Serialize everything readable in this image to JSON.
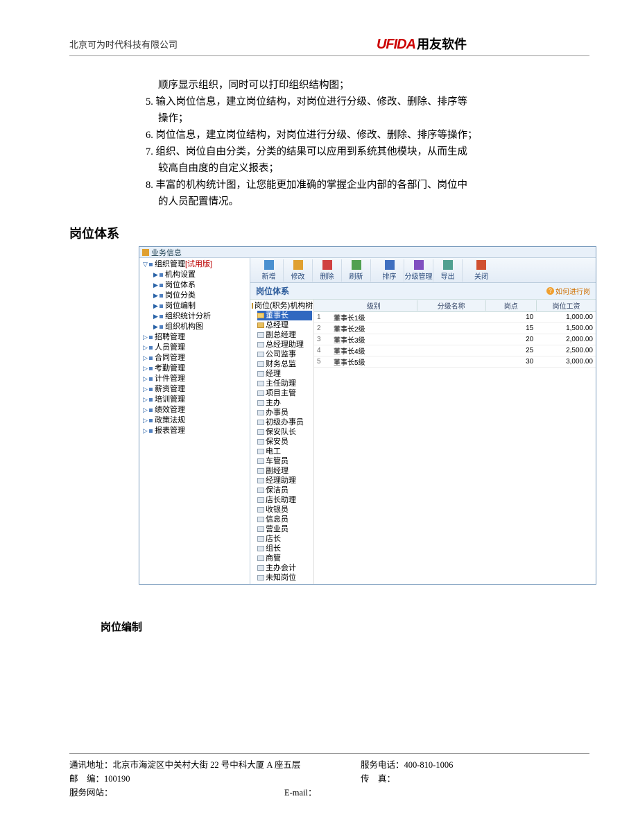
{
  "header": {
    "company": "北京可为时代科技有限公司",
    "logo_en": "UFIDA",
    "logo_cn": "用友软件"
  },
  "doc": {
    "pre_line": "顺序显示组织，同时可以打印组织结构图；",
    "items": [
      {
        "num": "5.",
        "text": "输入岗位信息，建立岗位结构，对岗位进行分级、修改、删除、排序等",
        "cont": "操作；"
      },
      {
        "num": "6.",
        "text": "岗位信息，建立岗位结构，对岗位进行分级、修改、删除、排序等操作；",
        "cont": ""
      },
      {
        "num": "7.",
        "text": "组织、岗位自由分类，分类的结果可以应用到系统其他模块，从而生成",
        "cont": "较高自由度的自定义报表；"
      },
      {
        "num": "8.",
        "text": "丰富的机构统计图，让您能更加准确的掌握企业内部的各部门、岗位中",
        "cont": "的人员配置情况。"
      }
    ],
    "section_title": "岗位体系",
    "sub_title": "岗位编制"
  },
  "ui": {
    "top_label": "业务信息",
    "nav": {
      "root": "组织管理",
      "trial": "[试用版]",
      "org_children": [
        "机构设置",
        "岗位体系",
        "岗位分类",
        "岗位编制",
        "组织统计分析",
        "组织机构图"
      ],
      "others": [
        "招聘管理",
        "人员管理",
        "合同管理",
        "考勤管理",
        "计件管理",
        "薪资管理",
        "培训管理",
        "绩效管理",
        "政策法规",
        "报表管理"
      ]
    },
    "toolbar": [
      "新增",
      "修改",
      "删除",
      "刷新",
      "排序",
      "分级管理",
      "导出",
      "关闭"
    ],
    "content_title": "岗位体系",
    "help": "如何进行岗",
    "tree": {
      "root": "岗位(职务)机构树",
      "selected": "董事长",
      "items": [
        "总经理",
        "副总经理",
        "总经理助理",
        "公司监事",
        "财务总监",
        "经理",
        "主任助理",
        "项目主管",
        "主办",
        "办事员",
        "初级办事员",
        "保安队长",
        "保安员",
        "电工",
        "车管员",
        "副经理",
        "经理助理",
        "保洁员",
        "店长助理",
        "收银员",
        "信息员",
        "营业员",
        "店长",
        "组长",
        "商管",
        "主办会计",
        "未知岗位"
      ]
    },
    "grid": {
      "cols": [
        "级别",
        "分级名称",
        "岗点",
        "岗位工资"
      ],
      "rows": [
        {
          "idx": "1",
          "name": "董事长1级",
          "pts": "10",
          "wage": "1,000.00"
        },
        {
          "idx": "2",
          "name": "董事长2级",
          "pts": "15",
          "wage": "1,500.00"
        },
        {
          "idx": "3",
          "name": "董事长3级",
          "pts": "20",
          "wage": "2,000.00"
        },
        {
          "idx": "4",
          "name": "董事长4级",
          "pts": "25",
          "wage": "2,500.00"
        },
        {
          "idx": "5",
          "name": "董事长5级",
          "pts": "30",
          "wage": "3,000.00"
        }
      ]
    }
  },
  "footer": {
    "addr_label": "通讯地址：",
    "addr": "北京市海淀区中关村大街 22 号中科大厦 A 座五层",
    "zip_label": "邮　编：",
    "zip": "100190",
    "site_label": "服务网站：",
    "phone_label": "服务电话：",
    "phone": "400-810-1006",
    "fax_label": "传　真：",
    "email_label": "E-mail："
  },
  "style": {
    "logo_red": "#cc0000",
    "ui_border": "#7a9bbd",
    "ui_bg": "#e8f0f9",
    "link_blue": "#2a5a9a"
  }
}
